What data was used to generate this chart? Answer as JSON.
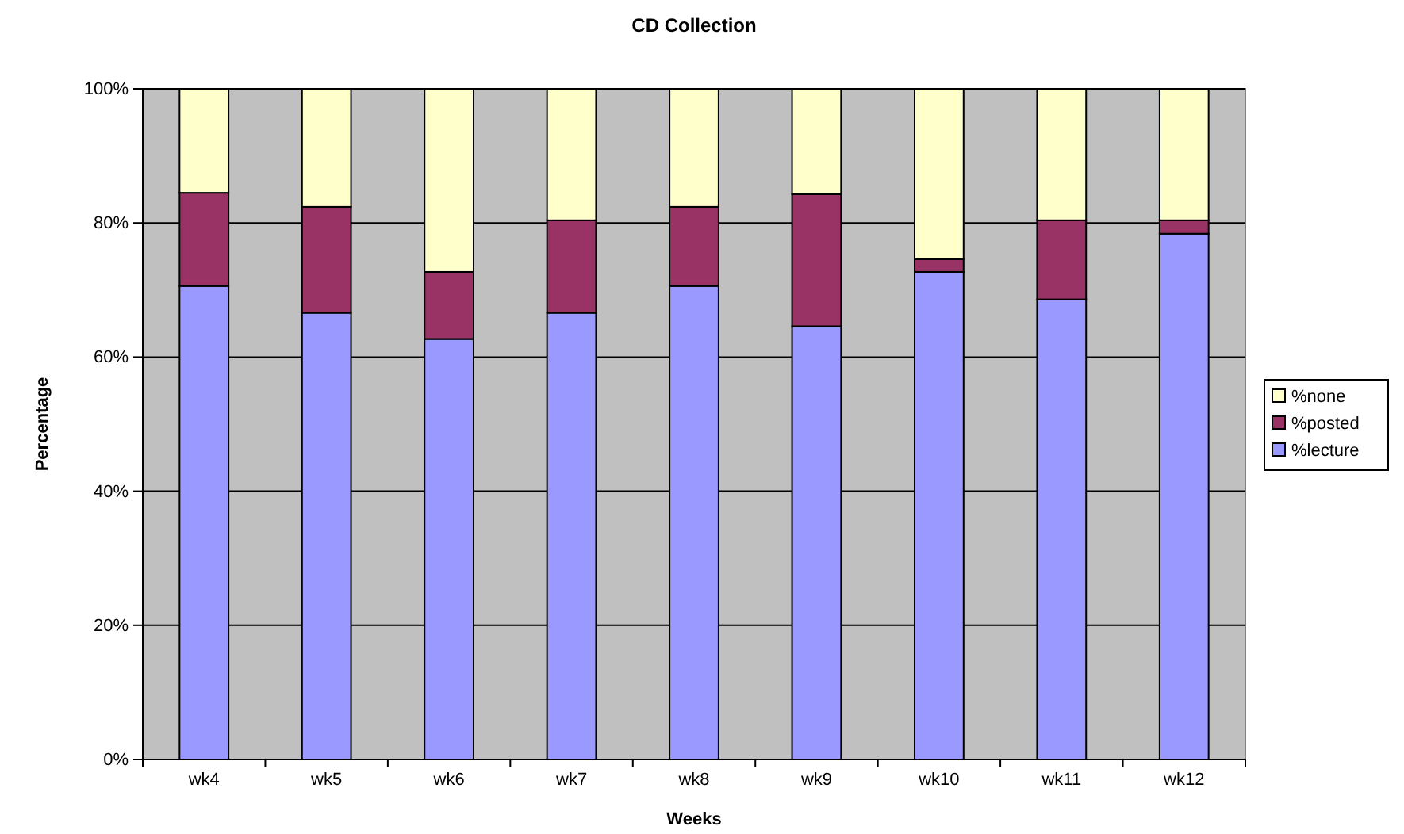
{
  "chart_data": {
    "type": "bar",
    "title": "CD Collection",
    "xlabel": "Weeks",
    "ylabel": "Percentage",
    "categories": [
      "wk4",
      "wk5",
      "wk6",
      "wk7",
      "wk8",
      "wk9",
      "wk10",
      "wk11",
      "wk12"
    ],
    "stacked": true,
    "ylim": [
      0,
      100
    ],
    "yticks": [
      {
        "value": 0,
        "label": "0%"
      },
      {
        "value": 20,
        "label": "20%"
      },
      {
        "value": 40,
        "label": "40%"
      },
      {
        "value": 60,
        "label": "60%"
      },
      {
        "value": 80,
        "label": "80%"
      },
      {
        "value": 100,
        "label": "100%"
      }
    ],
    "grid": "y",
    "legend": "right",
    "series": [
      {
        "name": "%lecture",
        "color": "#9999ff",
        "values": [
          70.6,
          66.6,
          62.7,
          66.6,
          70.6,
          64.6,
          72.7,
          68.6,
          78.4
        ]
      },
      {
        "name": "%posted",
        "color": "#993366",
        "values": [
          13.9,
          15.8,
          10.0,
          13.8,
          11.8,
          19.7,
          1.9,
          11.8,
          2.0
        ]
      },
      {
        "name": "%none",
        "color": "#ffffcc",
        "values": [
          15.5,
          17.6,
          27.3,
          19.6,
          17.6,
          15.7,
          25.4,
          19.6,
          19.6
        ]
      }
    ]
  }
}
